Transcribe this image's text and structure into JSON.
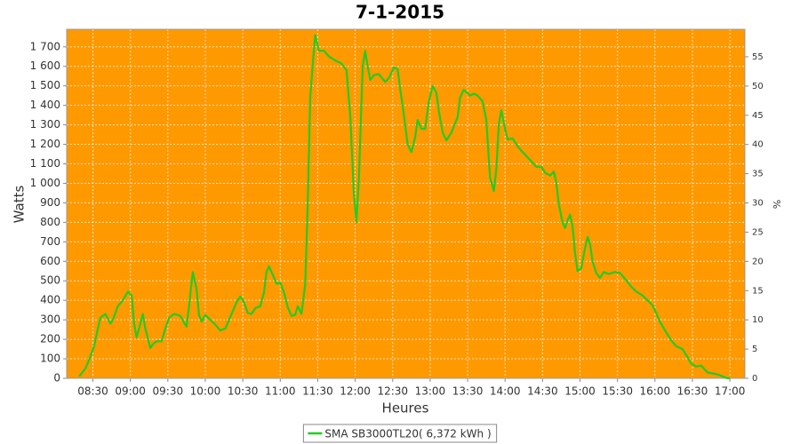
{
  "chart_data": {
    "type": "line",
    "title": "7-1-2015",
    "xlabel": "Heures",
    "ylabel": "Watts",
    "y2label": "%",
    "grid": true,
    "background": "#ff9900",
    "legend": "bottom",
    "xlim": [
      "08:09",
      "17:12"
    ],
    "xticks": [
      "08:30",
      "09:00",
      "09:30",
      "10:00",
      "10:30",
      "11:00",
      "11:30",
      "12:00",
      "12:30",
      "13:00",
      "13:30",
      "14:00",
      "14:30",
      "15:00",
      "15:30",
      "16:00",
      "16:30",
      "17:00"
    ],
    "ylim": [
      0,
      1790
    ],
    "yticks": [
      0,
      100,
      200,
      300,
      400,
      500,
      600,
      700,
      800,
      900,
      {
        "value": 1000,
        "label": "1 000"
      },
      {
        "value": 1100,
        "label": "1 100"
      },
      {
        "value": 1200,
        "label": "1 200"
      },
      {
        "value": 1300,
        "label": "1 300"
      },
      {
        "value": 1400,
        "label": "1 400"
      },
      {
        "value": 1500,
        "label": "1 500"
      },
      {
        "value": 1600,
        "label": "1 600"
      },
      {
        "value": 1700,
        "label": "1 700"
      }
    ],
    "y2lim": [
      0,
      59.7
    ],
    "y2ticks": [
      0,
      5,
      10,
      15,
      20,
      25,
      30,
      35,
      40,
      45,
      50,
      55
    ],
    "x": [
      "08:19",
      "08:24",
      "08:27",
      "08:31",
      "08:34",
      "08:36",
      "08:40",
      "08:44",
      "08:46",
      "08:50",
      "08:54",
      "08:58",
      "09:01",
      "09:03",
      "09:05",
      "09:08",
      "09:10",
      "09:12",
      "09:16",
      "09:18",
      "09:21",
      "09:25",
      "09:28",
      "09:31",
      "09:35",
      "09:40",
      "09:43",
      "09:45",
      "09:47",
      "09:49",
      "09:50",
      "09:53",
      "09:55",
      "09:57",
      "10:00",
      "10:04",
      "10:08",
      "10:12",
      "10:16",
      "10:19",
      "10:22",
      "10:25",
      "10:28",
      "10:31",
      "10:34",
      "10:37",
      "10:40",
      "10:44",
      "10:47",
      "10:49",
      "10:51",
      "10:54",
      "10:57",
      "11:00",
      "11:03",
      "11:06",
      "11:09",
      "11:12",
      "11:14",
      "11:17",
      "11:20",
      "11:22",
      "11:24",
      "11:27",
      "11:28",
      "11:31",
      "11:35",
      "11:39",
      "11:44",
      "11:49",
      "11:53",
      "11:56",
      "11:59",
      "12:01",
      "12:03",
      "12:06",
      "12:08",
      "12:10",
      "12:12",
      "12:15",
      "12:19",
      "12:24",
      "12:27",
      "12:31",
      "12:34",
      "12:36",
      "12:39",
      "12:42",
      "12:45",
      "12:48",
      "12:50",
      "12:53",
      "12:56",
      "12:59",
      "13:02",
      "13:05",
      "13:07",
      "13:10",
      "13:13",
      "13:17",
      "13:22",
      "13:24",
      "13:27",
      "13:32",
      "13:35",
      "13:38",
      "13:42",
      "13:45",
      "13:48",
      "13:51",
      "13:53",
      "13:55",
      "13:57",
      "14:00",
      "14:02",
      "14:06",
      "14:10",
      "14:14",
      "14:20",
      "14:25",
      "14:29",
      "14:32",
      "14:36",
      "14:39",
      "14:41",
      "14:43",
      "14:46",
      "14:48",
      "14:50",
      "14:52",
      "14:54",
      "14:56",
      "14:58",
      "15:01",
      "15:04",
      "15:06",
      "15:08",
      "15:10",
      "15:13",
      "15:16",
      "15:19",
      "15:23",
      "15:28",
      "15:32",
      "15:36",
      "15:41",
      "15:45",
      "15:50",
      "15:54",
      "15:58",
      "16:01",
      "16:04",
      "16:08",
      "16:13",
      "16:17",
      "16:22",
      "16:25",
      "16:29",
      "16:33",
      "16:37",
      "16:42",
      "16:46",
      "16:50",
      "16:54",
      "16:58",
      "17:00"
    ],
    "series": [
      {
        "name": "SMA SB3000TL20( 6,372 kWh )",
        "color": "#22cc22",
        "values": [
          10,
          50,
          95,
          165,
          255,
          310,
          330,
          280,
          300,
          370,
          400,
          445,
          425,
          280,
          210,
          280,
          330,
          255,
          155,
          175,
          190,
          190,
          255,
          310,
          330,
          320,
          285,
          265,
          370,
          490,
          545,
          460,
          325,
          290,
          325,
          300,
          275,
          245,
          255,
          300,
          345,
          390,
          420,
          390,
          335,
          330,
          360,
          370,
          440,
          545,
          575,
          530,
          485,
          490,
          440,
          365,
          320,
          325,
          370,
          330,
          485,
          895,
          1440,
          1690,
          1760,
          1680,
          1680,
          1650,
          1630,
          1615,
          1580,
          1350,
          940,
          800,
          1030,
          1600,
          1680,
          1600,
          1530,
          1555,
          1560,
          1520,
          1540,
          1595,
          1585,
          1485,
          1350,
          1200,
          1160,
          1235,
          1325,
          1280,
          1280,
          1420,
          1500,
          1465,
          1370,
          1260,
          1220,
          1260,
          1340,
          1440,
          1480,
          1450,
          1460,
          1450,
          1420,
          1325,
          1030,
          960,
          1075,
          1305,
          1375,
          1280,
          1225,
          1230,
          1190,
          1160,
          1120,
          1085,
          1085,
          1055,
          1040,
          1060,
          1005,
          895,
          800,
          770,
          810,
          840,
          780,
          645,
          550,
          565,
          665,
          725,
          690,
          600,
          540,
          515,
          545,
          535,
          545,
          540,
          510,
          470,
          445,
          425,
          400,
          375,
          335,
          290,
          245,
          195,
          165,
          150,
          120,
          75,
          60,
          65,
          30,
          25,
          20,
          10,
          0,
          0
        ]
      }
    ]
  }
}
